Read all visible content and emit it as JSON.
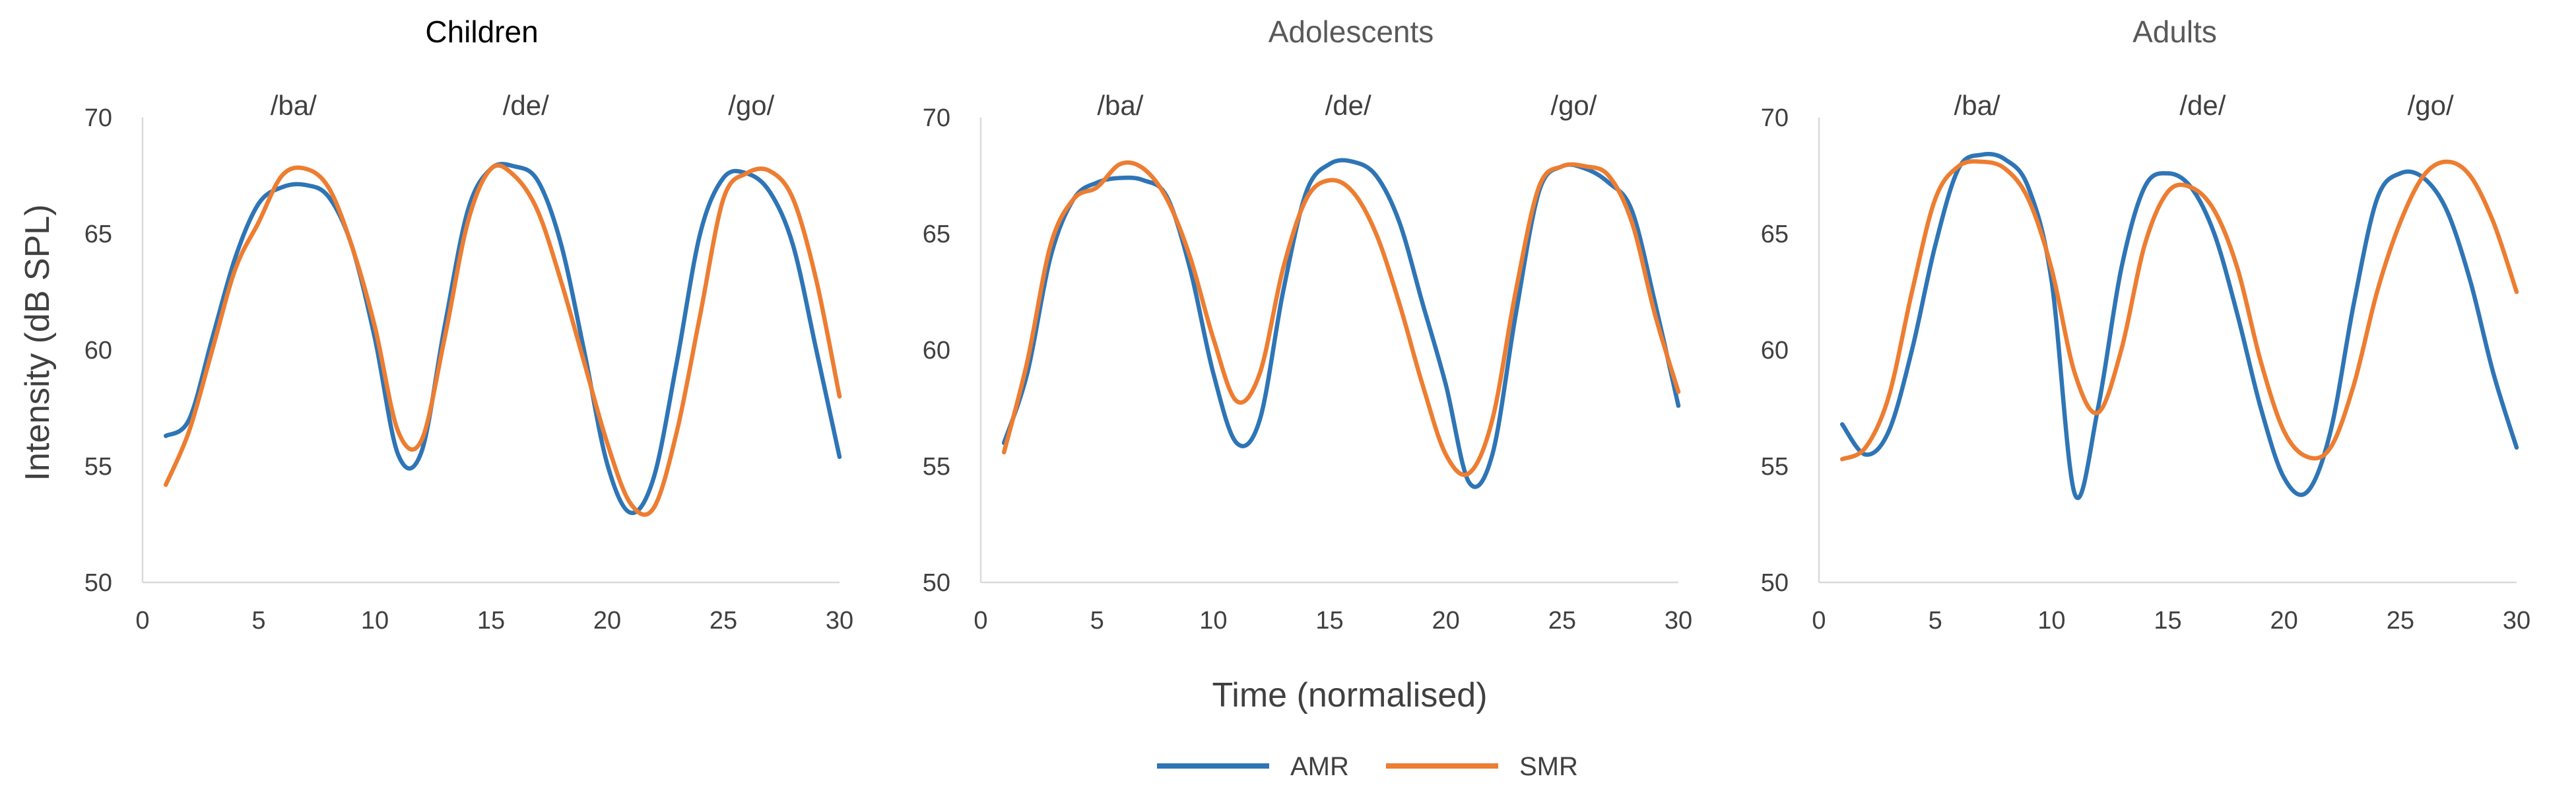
{
  "figure": {
    "ylabel": "Intensity (dB SPL)",
    "xlabel": "Time (normalised)",
    "legend": [
      {
        "name": "AMR",
        "color": "#2e75b6"
      },
      {
        "name": "SMR",
        "color": "#ed7d31"
      }
    ]
  },
  "chart_data": [
    {
      "type": "line",
      "title": "Children",
      "title_color": "#000000",
      "xlim": [
        0,
        30
      ],
      "ylim": [
        50,
        70
      ],
      "xticks": [
        0,
        5,
        10,
        15,
        20,
        25,
        30
      ],
      "yticks": [
        50,
        55,
        60,
        65,
        70
      ],
      "annotations": [
        {
          "text": "/ba/",
          "x": 6.5
        },
        {
          "text": "/de/",
          "x": 16.5
        },
        {
          "text": "/go/",
          "x": 26.2
        }
      ],
      "series": [
        {
          "name": "AMR",
          "color": "#2e75b6",
          "x": [
            1,
            2,
            3,
            4,
            5,
            6,
            7,
            8,
            9,
            10,
            11,
            12,
            13,
            14,
            15,
            16,
            17,
            18,
            19,
            20,
            21,
            22,
            23,
            24,
            25,
            26,
            27,
            28,
            29,
            30
          ],
          "y": [
            56.3,
            57.0,
            60.5,
            64.0,
            66.3,
            67.0,
            67.1,
            66.6,
            64.5,
            60.5,
            55.5,
            55.6,
            61.0,
            66.0,
            67.8,
            67.9,
            67.3,
            64.6,
            60.0,
            55.1,
            53.0,
            54.5,
            59.5,
            65.0,
            67.4,
            67.6,
            66.8,
            64.5,
            60.0,
            55.4
          ]
        },
        {
          "name": "SMR",
          "color": "#ed7d31",
          "x": [
            1,
            2,
            3,
            4,
            5,
            6,
            7,
            8,
            9,
            10,
            11,
            12,
            13,
            14,
            15,
            16,
            17,
            18,
            19,
            20,
            21,
            22,
            23,
            24,
            25,
            26,
            27,
            28,
            29,
            30
          ],
          "y": [
            54.2,
            56.5,
            60.0,
            63.5,
            65.5,
            67.5,
            67.8,
            67.0,
            64.5,
            61.0,
            56.5,
            56.1,
            60.5,
            65.5,
            67.8,
            67.5,
            66.0,
            63.0,
            59.5,
            56.0,
            53.4,
            53.2,
            56.5,
            61.5,
            66.5,
            67.6,
            67.7,
            66.5,
            63.0,
            58.0
          ]
        }
      ]
    },
    {
      "type": "line",
      "title": "Adolescents",
      "title_color": "#595959",
      "xlim": [
        0,
        30
      ],
      "ylim": [
        50,
        70
      ],
      "xticks": [
        0,
        5,
        10,
        15,
        20,
        25,
        30
      ],
      "yticks": [
        50,
        55,
        60,
        65,
        70
      ],
      "annotations": [
        {
          "text": "/ba/",
          "x": 6.0
        },
        {
          "text": "/de/",
          "x": 15.8
        },
        {
          "text": "/go/",
          "x": 25.5
        }
      ],
      "series": [
        {
          "name": "AMR",
          "color": "#2e75b6",
          "x": [
            1,
            2,
            3,
            4,
            5,
            6,
            7,
            8,
            9,
            10,
            11,
            12,
            13,
            14,
            15,
            16,
            17,
            18,
            19,
            20,
            21,
            22,
            23,
            24,
            25,
            26,
            27,
            28,
            29,
            30
          ],
          "y": [
            56.0,
            59.0,
            64.0,
            66.5,
            67.2,
            67.4,
            67.3,
            66.6,
            63.5,
            59.0,
            56.0,
            57.0,
            62.5,
            66.8,
            68.0,
            68.1,
            67.5,
            65.5,
            62.0,
            58.5,
            54.3,
            55.5,
            61.5,
            66.8,
            67.9,
            67.8,
            67.2,
            66.0,
            62.0,
            57.6
          ]
        },
        {
          "name": "SMR",
          "color": "#ed7d31",
          "x": [
            1,
            2,
            3,
            4,
            5,
            6,
            7,
            8,
            9,
            10,
            11,
            12,
            13,
            14,
            15,
            16,
            17,
            18,
            19,
            20,
            21,
            22,
            23,
            24,
            25,
            26,
            27,
            28,
            29,
            30
          ],
          "y": [
            55.6,
            59.5,
            64.5,
            66.5,
            67.0,
            68.0,
            67.8,
            66.5,
            64.0,
            60.5,
            57.8,
            59.0,
            63.5,
            66.5,
            67.3,
            66.8,
            65.0,
            62.0,
            58.5,
            55.5,
            54.7,
            57.0,
            62.5,
            67.0,
            67.9,
            67.9,
            67.5,
            65.5,
            61.5,
            58.2
          ]
        }
      ]
    },
    {
      "type": "line",
      "title": "Adults",
      "title_color": "#595959",
      "xlim": [
        0,
        30
      ],
      "ylim": [
        50,
        70
      ],
      "xticks": [
        0,
        5,
        10,
        15,
        20,
        25,
        30
      ],
      "yticks": [
        50,
        55,
        60,
        65,
        70
      ],
      "annotations": [
        {
          "text": "/ba/",
          "x": 6.8
        },
        {
          "text": "/de/",
          "x": 16.5
        },
        {
          "text": "/go/",
          "x": 26.3
        }
      ],
      "series": [
        {
          "name": "AMR",
          "color": "#2e75b6",
          "x": [
            1,
            2,
            3,
            4,
            5,
            6,
            7,
            8,
            9,
            10,
            11,
            12,
            13,
            14,
            15,
            16,
            17,
            18,
            19,
            20,
            21,
            22,
            23,
            24,
            25,
            26,
            27,
            28,
            29,
            30
          ],
          "y": [
            56.8,
            55.5,
            56.5,
            60.0,
            64.5,
            67.8,
            68.4,
            68.2,
            67.0,
            63.0,
            53.8,
            57.5,
            63.5,
            67.0,
            67.6,
            67.0,
            65.0,
            61.5,
            57.5,
            54.5,
            53.9,
            56.5,
            62.0,
            66.5,
            67.6,
            67.4,
            66.0,
            63.0,
            59.0,
            55.8
          ]
        },
        {
          "name": "SMR",
          "color": "#ed7d31",
          "x": [
            1,
            2,
            3,
            4,
            5,
            6,
            7,
            8,
            9,
            10,
            11,
            12,
            13,
            14,
            15,
            16,
            17,
            18,
            19,
            20,
            21,
            22,
            23,
            24,
            25,
            26,
            27,
            28,
            29,
            30
          ],
          "y": [
            55.3,
            55.8,
            58.0,
            62.5,
            66.5,
            67.9,
            68.1,
            67.8,
            66.5,
            63.5,
            59.0,
            57.3,
            60.0,
            64.5,
            66.8,
            67.0,
            66.0,
            63.5,
            59.5,
            56.5,
            55.4,
            55.8,
            58.5,
            62.5,
            65.5,
            67.5,
            68.1,
            67.5,
            65.5,
            62.5
          ]
        }
      ]
    }
  ]
}
